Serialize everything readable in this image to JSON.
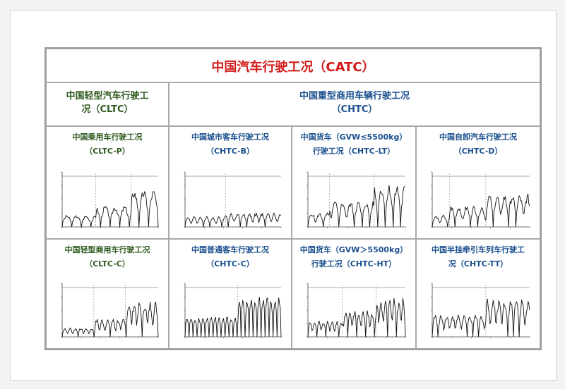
{
  "title": "中国汽车行驶工况（CATC）",
  "light": {
    "line1": "中国轻型汽车行驶工",
    "line2": "况（CLTC）"
  },
  "heavy": {
    "line1": "中国重型商用车辆行驶工况",
    "line2": "（CHTC）"
  },
  "cells": [
    {
      "id": "cltc-p",
      "lines": [
        "中国乘用车行驶工况",
        "（CLTC-P）"
      ]
    },
    {
      "id": "chtc-b",
      "lines": [
        "中国城市客车行驶工况",
        "（CHTC-B）"
      ]
    },
    {
      "id": "chtc-lt",
      "lines": [
        "中国货车（GVW≤5500kg）",
        "行驶工况（CHTC-LT）"
      ]
    },
    {
      "id": "chtc-d",
      "lines": [
        "中国自卸汽车行驶工况",
        "（CHTC-D）"
      ]
    },
    {
      "id": "cltc-c",
      "lines": [
        "中国轻型商用车行驶工况",
        "（CLTC-C）"
      ]
    },
    {
      "id": "chtc-c",
      "lines": [
        "中国普通客车行驶工况",
        "（CHTC-C）"
      ]
    },
    {
      "id": "chtc-ht",
      "lines": [
        "中国货车（GVW＞5500kg）",
        "行驶工况（CHTC-HT）"
      ]
    },
    {
      "id": "chtc-tt",
      "lines": [
        "中国半挂牵引车列车行驶工",
        "况（CHTC-TT）"
      ]
    }
  ],
  "colors": {
    "title": "#d21a1a",
    "light": "#2e5a1e",
    "heavy": "#1a4f8e",
    "border": "#a9a9a9"
  }
}
